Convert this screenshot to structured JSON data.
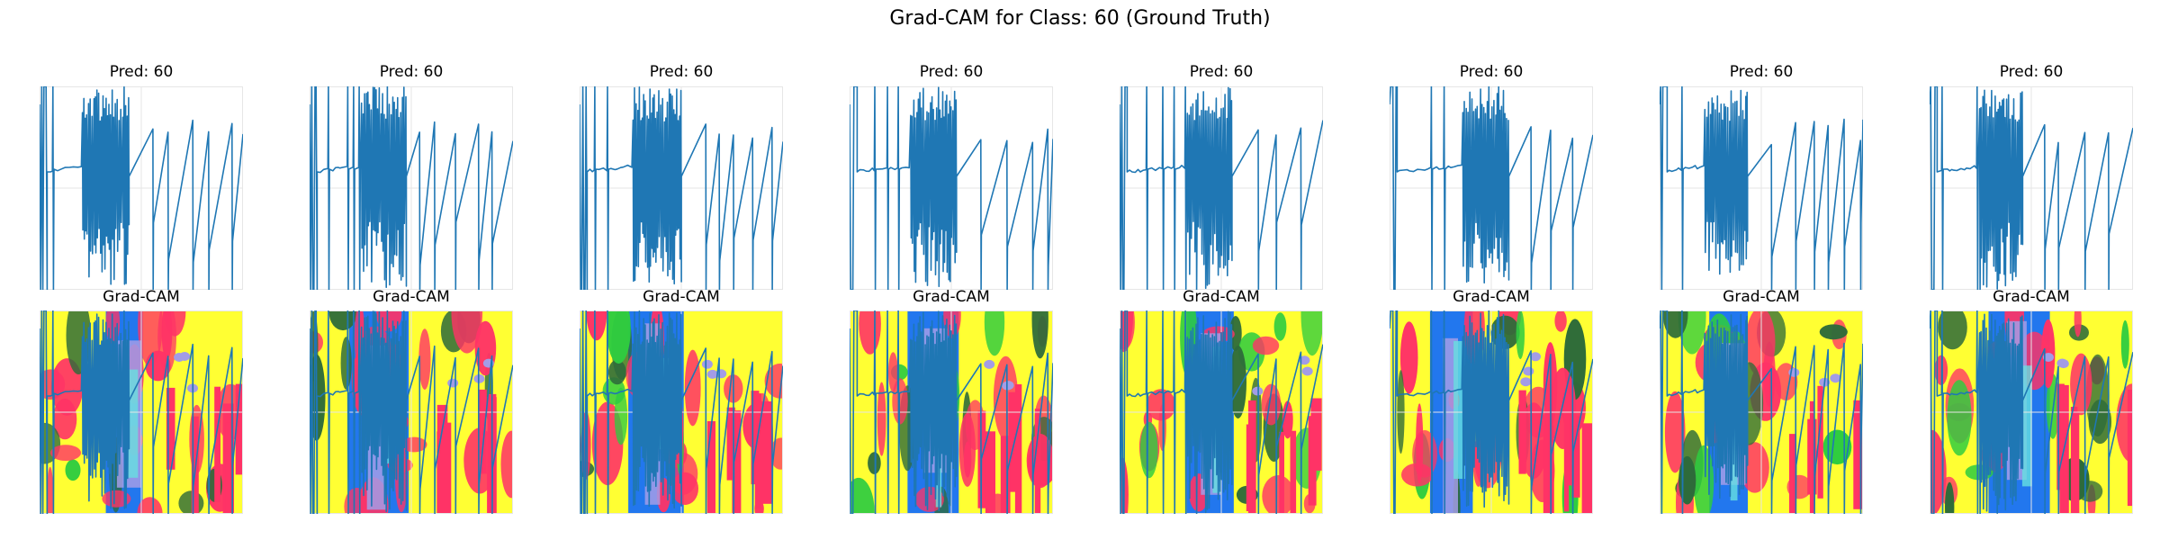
{
  "figure": {
    "title": "Grad-CAM for Class: 60 (Ground Truth)"
  },
  "colors": {
    "line": "#1f77b4",
    "grid": "#e6e6e6",
    "cam_yellow": "#ffff33",
    "cam_pink": "#ff3366",
    "cam_green": "#2ecc40",
    "cam_dark_green": "#2e6b3a",
    "cam_blue": "#2277ee",
    "cam_lavender": "#a39ce6",
    "cam_cyan": "#66e0e0"
  },
  "chart_data": [
    {
      "type": "line",
      "title": "Pred: 60",
      "row": "prediction",
      "sample": 1
    },
    {
      "type": "line",
      "title": "Pred: 60",
      "row": "prediction",
      "sample": 2
    },
    {
      "type": "line",
      "title": "Pred: 60",
      "row": "prediction",
      "sample": 3
    },
    {
      "type": "line",
      "title": "Pred: 60",
      "row": "prediction",
      "sample": 4
    },
    {
      "type": "line",
      "title": "Pred: 60",
      "row": "prediction",
      "sample": 5
    },
    {
      "type": "line",
      "title": "Pred: 60",
      "row": "prediction",
      "sample": 6
    },
    {
      "type": "line",
      "title": "Pred: 60",
      "row": "prediction",
      "sample": 7
    },
    {
      "type": "line",
      "title": "Pred: 60",
      "row": "prediction",
      "sample": 8
    },
    {
      "type": "heatmap",
      "title": "Grad-CAM",
      "row": "grad-cam",
      "sample": 1,
      "overlay": "line"
    },
    {
      "type": "heatmap",
      "title": "Grad-CAM",
      "row": "grad-cam",
      "sample": 2,
      "overlay": "line"
    },
    {
      "type": "heatmap",
      "title": "Grad-CAM",
      "row": "grad-cam",
      "sample": 3,
      "overlay": "line"
    },
    {
      "type": "heatmap",
      "title": "Grad-CAM",
      "row": "grad-cam",
      "sample": 4,
      "overlay": "line"
    },
    {
      "type": "heatmap",
      "title": "Grad-CAM",
      "row": "grad-cam",
      "sample": 5,
      "overlay": "line"
    },
    {
      "type": "heatmap",
      "title": "Grad-CAM",
      "row": "grad-cam",
      "sample": 6,
      "overlay": "line"
    },
    {
      "type": "heatmap",
      "title": "Grad-CAM",
      "row": "grad-cam",
      "sample": 7,
      "overlay": "line"
    },
    {
      "type": "heatmap",
      "title": "Grad-CAM",
      "row": "grad-cam",
      "sample": 8,
      "overlay": "line"
    }
  ]
}
